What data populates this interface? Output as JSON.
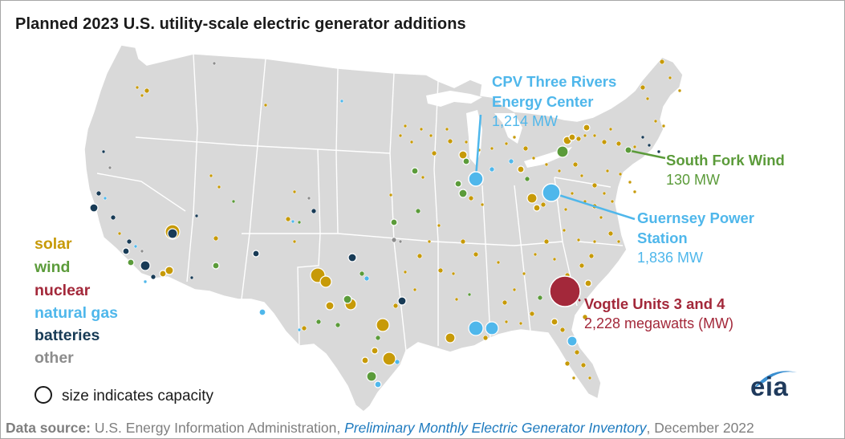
{
  "title": "Planned 2023 U.S. utility-scale electric generator additions",
  "legend": [
    {
      "label": "solar",
      "color": "#c79a08"
    },
    {
      "label": "wind",
      "color": "#5b9b3a"
    },
    {
      "label": "nuclear",
      "color": "#a3283a"
    },
    {
      "label": "natural gas",
      "color": "#4fb7eb"
    },
    {
      "label": "batteries",
      "color": "#183b56"
    },
    {
      "label": "other",
      "color": "#8c8c8c"
    }
  ],
  "size_note": "size indicates capacity",
  "callouts": [
    {
      "name": "CPV Three Rivers Energy Center",
      "title_lines": [
        "CPV Three Rivers",
        "Energy Center"
      ],
      "value": "1,214 MW",
      "color": "#4fb7eb"
    },
    {
      "name": "South Fork Wind",
      "title_lines": [
        "South Fork Wind"
      ],
      "value": "130 MW",
      "color": "#5b9b3a"
    },
    {
      "name": "Guernsey Power Station",
      "title_lines": [
        "Guernsey Power",
        "Station"
      ],
      "value": "1,836 MW",
      "color": "#4fb7eb"
    },
    {
      "name": "Vogtle Units 3 and 4",
      "title_lines": [
        "Vogtle Units 3 and 4"
      ],
      "value": "2,228 megawatts (MW)",
      "color": "#a3283a"
    }
  ],
  "source": {
    "label": "Data source:",
    "agency": " U.S. Energy Information Administration, ",
    "publication": "Preliminary Monthly Electric Generator Inventory",
    "date": ", December 2022"
  },
  "logo": {
    "text": "eia",
    "colors": [
      "#1f3a5c",
      "#3a8fd1"
    ]
  },
  "colors": {
    "land": "#d9d9d9",
    "border": "#ffffff"
  }
}
